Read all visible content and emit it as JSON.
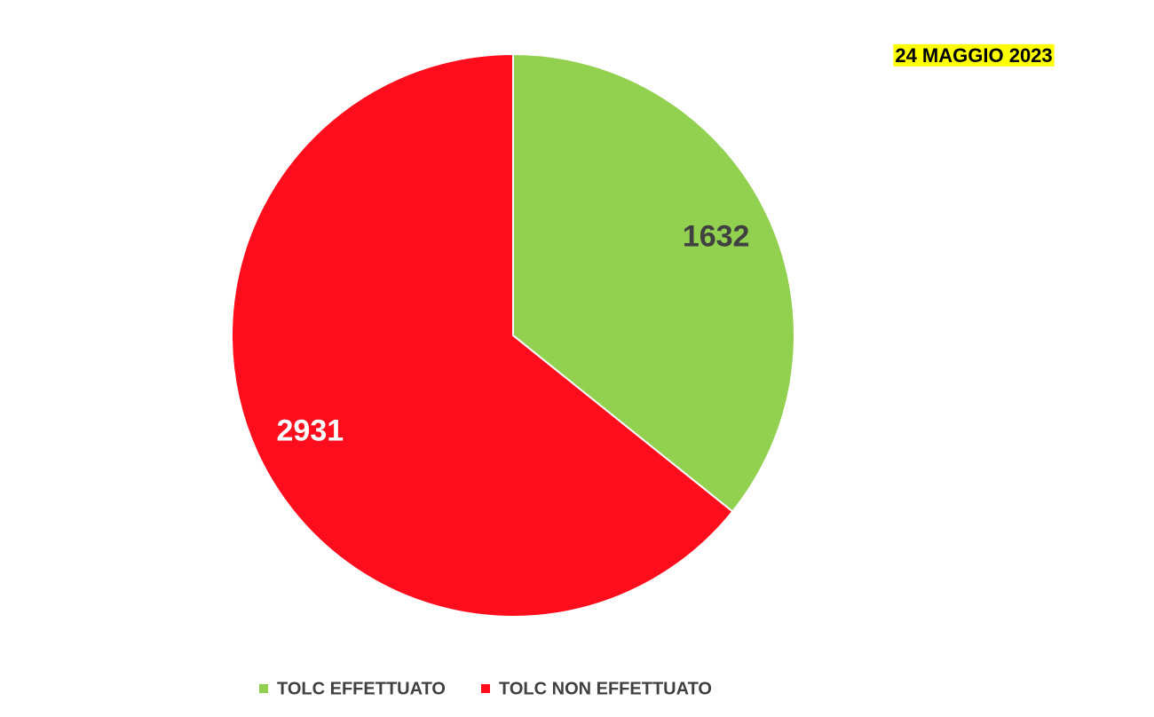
{
  "chart_data": {
    "type": "pie",
    "title": "24 MAGGIO 2023",
    "categories": [
      "TOLC EFFETTUATO",
      "TOLC NON EFFETTUATO"
    ],
    "values": [
      1632,
      2931
    ],
    "colors": [
      "#92d050",
      "#ff0d1d"
    ],
    "label_colors": [
      "#404040",
      "#ffffff"
    ]
  }
}
